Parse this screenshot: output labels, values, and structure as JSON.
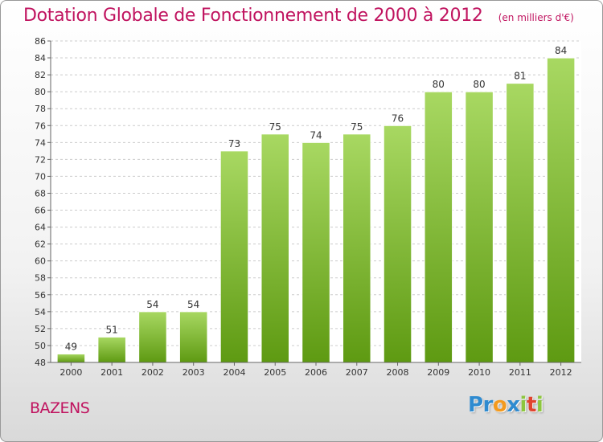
{
  "title": "Dotation Globale de Fonctionnement de 2000 à 2012",
  "subtitle": "(en milliers d'€)",
  "location": "BAZENS",
  "logo": {
    "letters": [
      {
        "char": "P",
        "color": "#2f8bd0"
      },
      {
        "char": "r",
        "color": "#2f8bd0"
      },
      {
        "char": "o",
        "color": "#f39a1e"
      },
      {
        "char": "x",
        "color": "#2f8bd0"
      },
      {
        "char": "i",
        "color": "#8dc63f"
      },
      {
        "char": "t",
        "color": "#e0432e"
      },
      {
        "char": "i",
        "color": "#8dc63f"
      }
    ]
  },
  "chart_data": {
    "type": "bar",
    "title": "Dotation Globale de Fonctionnement de 2000 à 2012",
    "subtitle": "(en milliers d'€)",
    "categories": [
      "2000",
      "2001",
      "2002",
      "2003",
      "2004",
      "2005",
      "2006",
      "2007",
      "2008",
      "2009",
      "2010",
      "2011",
      "2012"
    ],
    "values": [
      49,
      51,
      54,
      54,
      73,
      75,
      74,
      75,
      76,
      80,
      80,
      81,
      84
    ],
    "ylim": [
      48,
      86
    ],
    "yticks": [
      48,
      50,
      52,
      54,
      56,
      58,
      60,
      62,
      64,
      66,
      68,
      70,
      72,
      74,
      76,
      78,
      80,
      82,
      84,
      86
    ],
    "grid": true,
    "bar_color_top": "#a8d862",
    "bar_color_bottom": "#5e9a12",
    "label_color": "#333333"
  }
}
